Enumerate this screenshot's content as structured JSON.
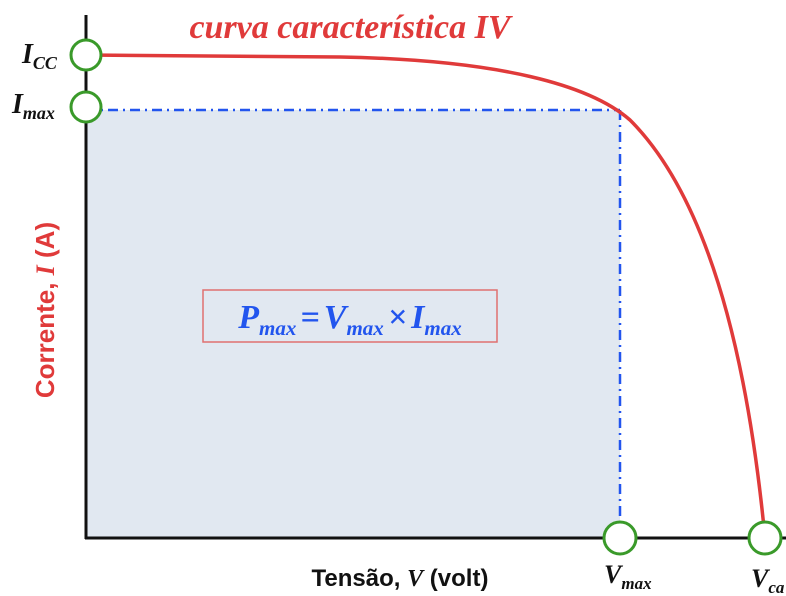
{
  "title": "curva característica IV",
  "y_axis_label": {
    "text": "Corrente, ",
    "var": "I",
    "unit": " (A)"
  },
  "x_axis_label": {
    "text": "Tensão, ",
    "var": "V",
    "unit": " (volt)"
  },
  "points": [
    {
      "symbol": "I",
      "sub": "CC"
    },
    {
      "symbol": "I",
      "sub": "max"
    },
    {
      "symbol": "V",
      "sub": "max"
    },
    {
      "symbol": "V",
      "sub": "ca"
    }
  ],
  "formula": {
    "lhs": {
      "symbol": "P",
      "sub": "max"
    },
    "eq": "=",
    "a": {
      "symbol": "V",
      "sub": "max"
    },
    "op": "×",
    "b": {
      "symbol": "I",
      "sub": "max"
    }
  }
}
